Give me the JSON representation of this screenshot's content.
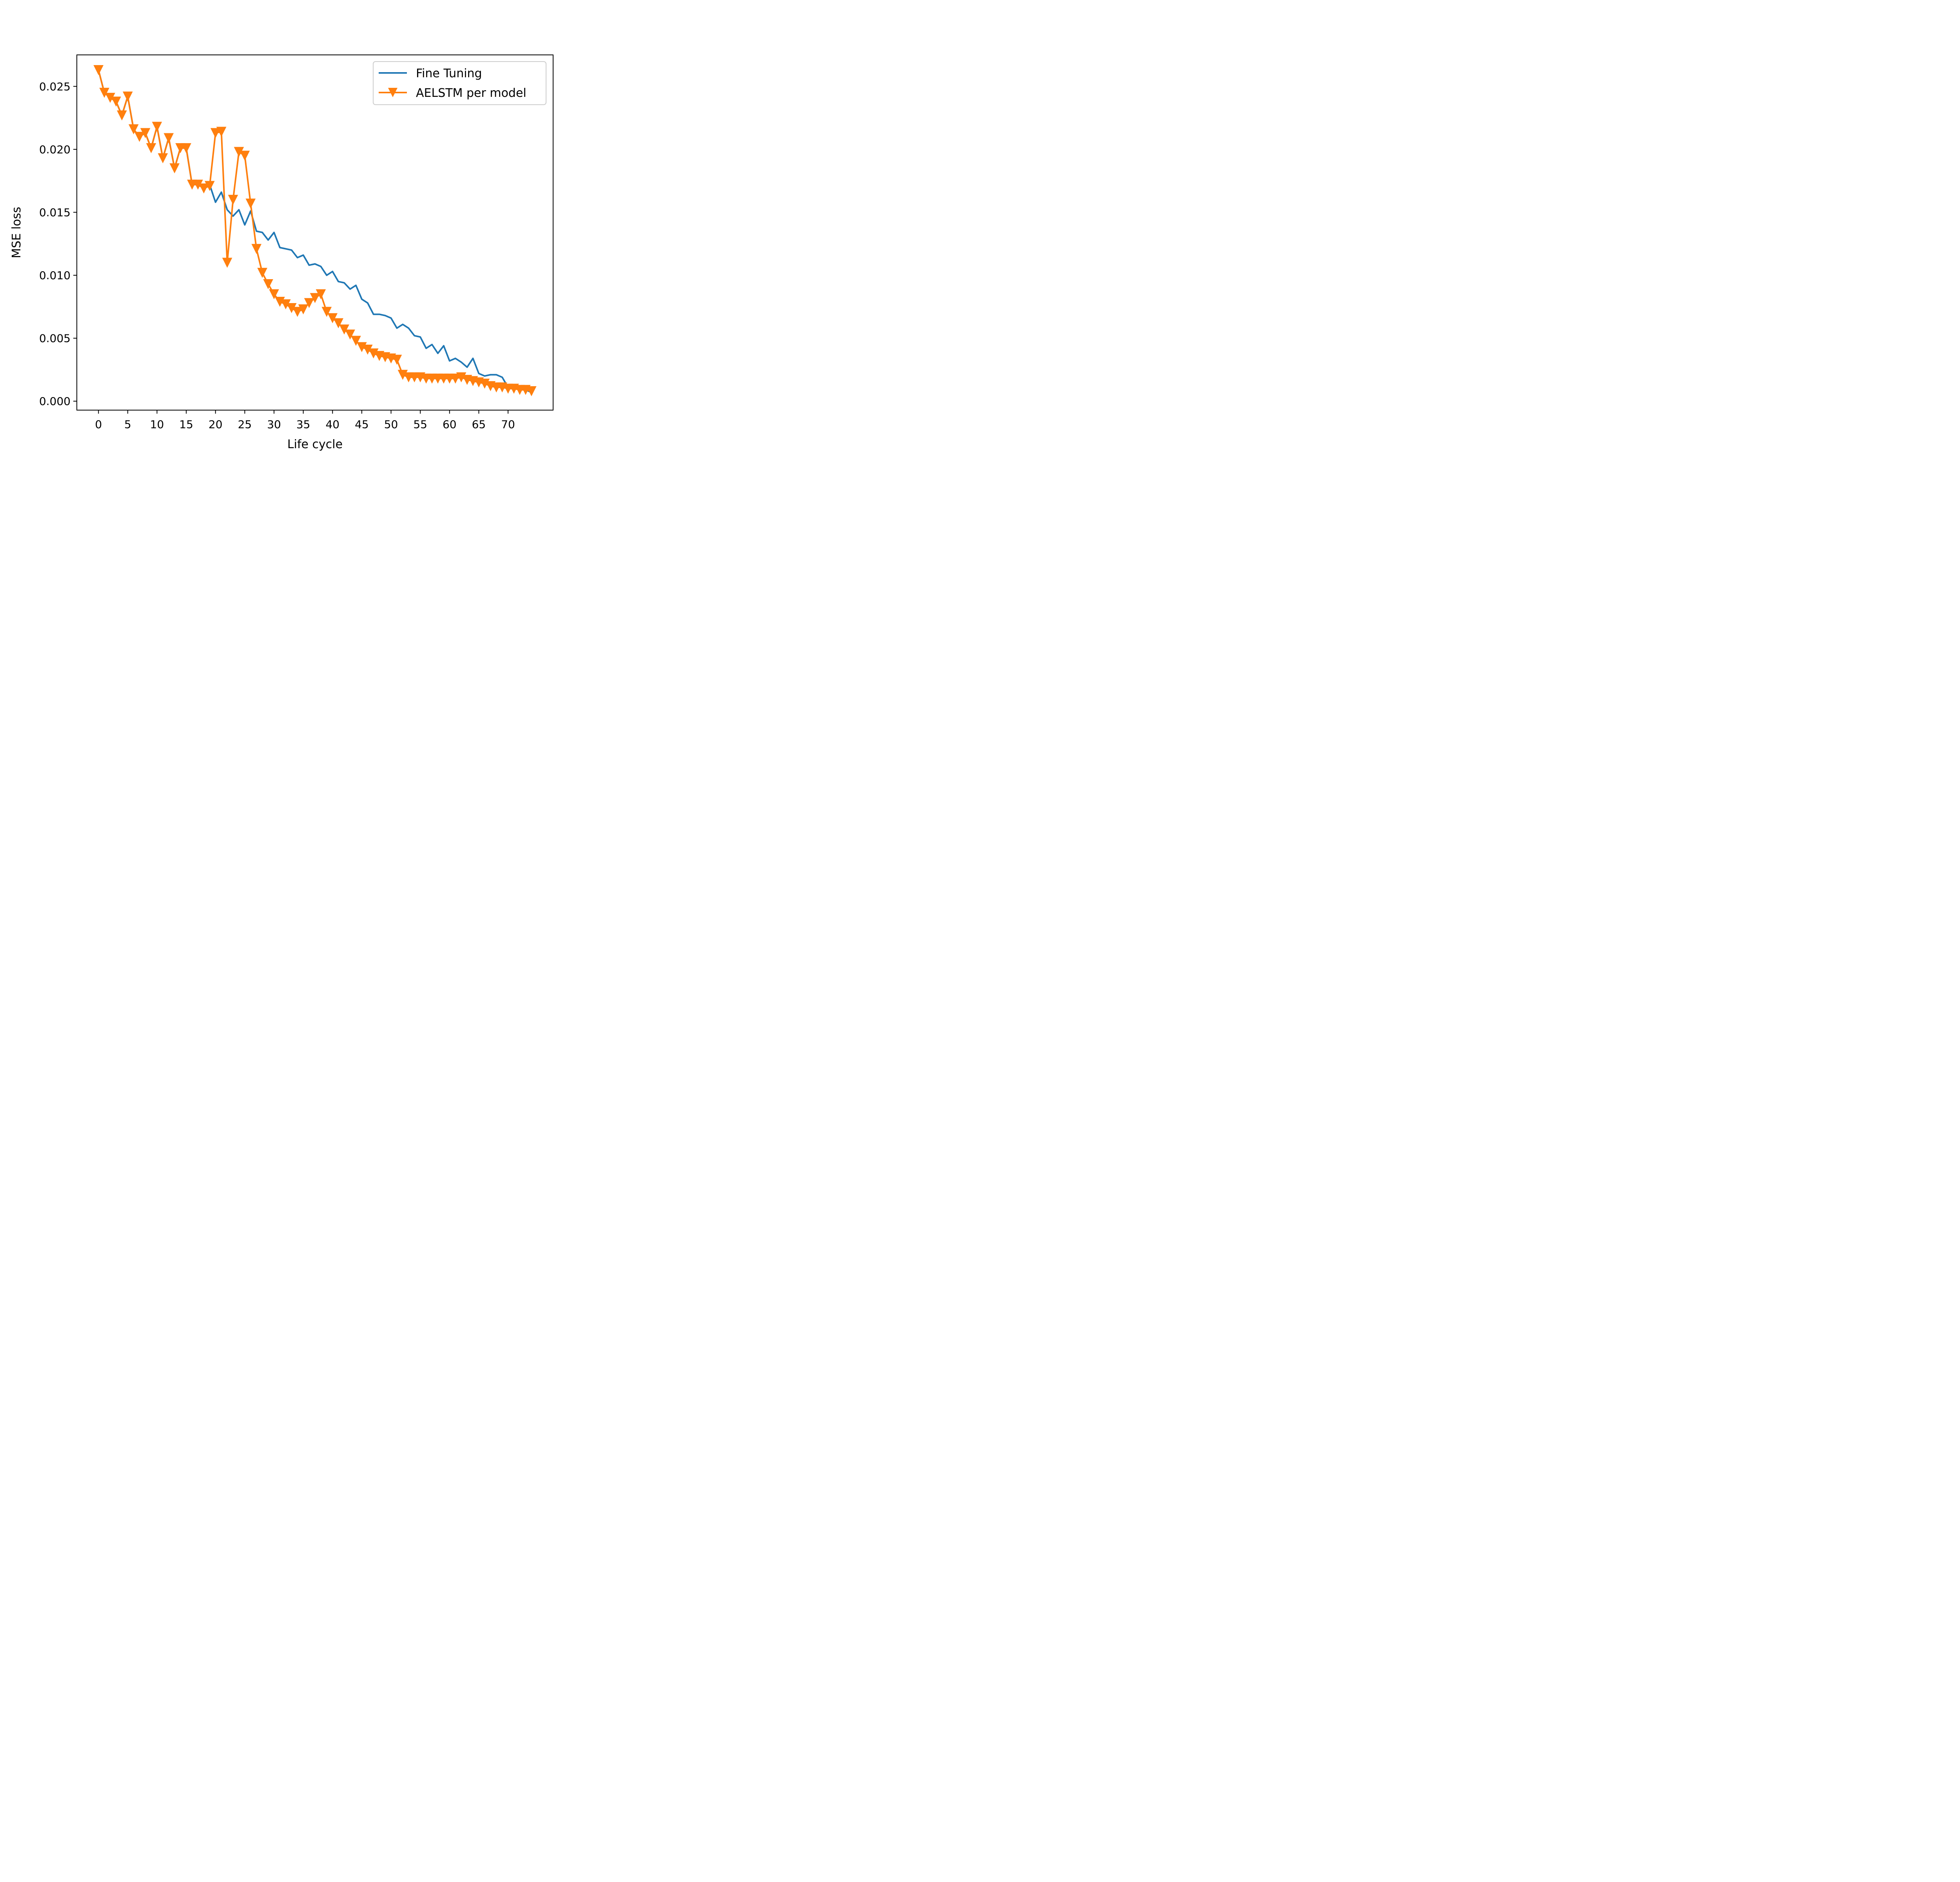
{
  "chart_data": {
    "type": "line",
    "title": "",
    "xlabel": "Life cycle",
    "ylabel": "MSE loss",
    "xlim": [
      -3.7,
      77.7
    ],
    "ylim": [
      -0.00071,
      0.0275
    ],
    "xticks": [
      0,
      5,
      10,
      15,
      20,
      25,
      30,
      35,
      40,
      45,
      50,
      55,
      60,
      65,
      70
    ],
    "xtick_labels": [
      "0",
      "5",
      "10",
      "15",
      "20",
      "25",
      "30",
      "35",
      "40",
      "45",
      "50",
      "55",
      "60",
      "65",
      "70"
    ],
    "yticks": [
      0.0,
      0.005,
      0.01,
      0.015,
      0.02,
      0.025
    ],
    "ytick_labels": [
      "0.000",
      "0.005",
      "0.010",
      "0.015",
      "0.020",
      "0.025"
    ],
    "grid": false,
    "legend_position": "top-right",
    "series": [
      {
        "name": "Fine Tuning",
        "color": "#1f77b4",
        "marker": "none",
        "x": [
          0,
          1,
          2,
          3,
          4,
          5,
          6,
          7,
          8,
          9,
          10,
          11,
          12,
          13,
          14,
          15,
          16,
          17,
          18,
          19,
          20,
          21,
          22,
          23,
          24,
          25,
          26,
          27,
          28,
          29,
          30,
          31,
          32,
          33,
          34,
          35,
          36,
          37,
          38,
          39,
          40,
          41,
          42,
          43,
          44,
          45,
          46,
          47,
          48,
          49,
          50,
          51,
          52,
          53,
          54,
          55,
          56,
          57,
          58,
          59,
          60,
          61,
          62,
          63,
          64,
          65,
          66,
          67,
          68,
          69,
          70,
          71,
          72,
          73,
          74
        ],
        "values": [
          0.0263,
          0.0245,
          0.0241,
          0.0238,
          0.0227,
          0.0242,
          0.0216,
          0.021,
          0.0213,
          0.0201,
          0.0218,
          0.0193,
          0.0209,
          0.0185,
          0.0201,
          0.0201,
          0.0172,
          0.0172,
          0.0169,
          0.0172,
          0.0158,
          0.0166,
          0.0152,
          0.0147,
          0.0152,
          0.014,
          0.0151,
          0.0135,
          0.0134,
          0.0128,
          0.0134,
          0.0122,
          0.0121,
          0.012,
          0.0114,
          0.0116,
          0.0108,
          0.0109,
          0.0107,
          0.01,
          0.0103,
          0.0095,
          0.0094,
          0.0089,
          0.0092,
          0.0081,
          0.0078,
          0.0069,
          0.0069,
          0.0068,
          0.0066,
          0.0058,
          0.0061,
          0.0058,
          0.0052,
          0.0051,
          0.0042,
          0.0045,
          0.0038,
          0.0044,
          0.0032,
          0.0034,
          0.0031,
          0.0027,
          0.0034,
          0.0022,
          0.002,
          0.0021,
          0.0021,
          0.0019,
          0.0011,
          0.001,
          0.001,
          0.0009,
          0.0007
        ]
      },
      {
        "name": "AELSTM per model",
        "color": "#ff7f0e",
        "marker": "triangle-down",
        "x": [
          0,
          1,
          2,
          3,
          4,
          5,
          6,
          7,
          8,
          9,
          10,
          11,
          12,
          13,
          14,
          15,
          16,
          17,
          18,
          19,
          20,
          21,
          22,
          23,
          24,
          25,
          26,
          27,
          28,
          29,
          30,
          31,
          32,
          33,
          34,
          35,
          36,
          37,
          38,
          39,
          40,
          41,
          42,
          43,
          44,
          45,
          46,
          47,
          48,
          49,
          50,
          51,
          52,
          53,
          54,
          55,
          56,
          57,
          58,
          59,
          60,
          61,
          62,
          63,
          64,
          65,
          66,
          67,
          68,
          69,
          70,
          71,
          72,
          73,
          74
        ],
        "values": [
          0.0263,
          0.0245,
          0.0241,
          0.0238,
          0.0227,
          0.0242,
          0.0216,
          0.021,
          0.0213,
          0.0201,
          0.0218,
          0.0193,
          0.0209,
          0.0185,
          0.0201,
          0.0201,
          0.0172,
          0.0172,
          0.0169,
          0.0171,
          0.0213,
          0.0214,
          0.011,
          0.016,
          0.0198,
          0.0195,
          0.0157,
          0.0121,
          0.0102,
          0.0093,
          0.0085,
          0.0079,
          0.0077,
          0.0074,
          0.0071,
          0.0073,
          0.0078,
          0.0082,
          0.0085,
          0.0071,
          0.0066,
          0.0062,
          0.0057,
          0.0053,
          0.0048,
          0.0043,
          0.0041,
          0.0038,
          0.0036,
          0.0035,
          0.0034,
          0.0033,
          0.0021,
          0.0019,
          0.0019,
          0.0019,
          0.0018,
          0.0018,
          0.0018,
          0.0018,
          0.0018,
          0.0018,
          0.0019,
          0.0017,
          0.0016,
          0.0015,
          0.0014,
          0.0012,
          0.0011,
          0.0011,
          0.001,
          0.001,
          0.0009,
          0.0009,
          0.0008
        ]
      }
    ]
  }
}
